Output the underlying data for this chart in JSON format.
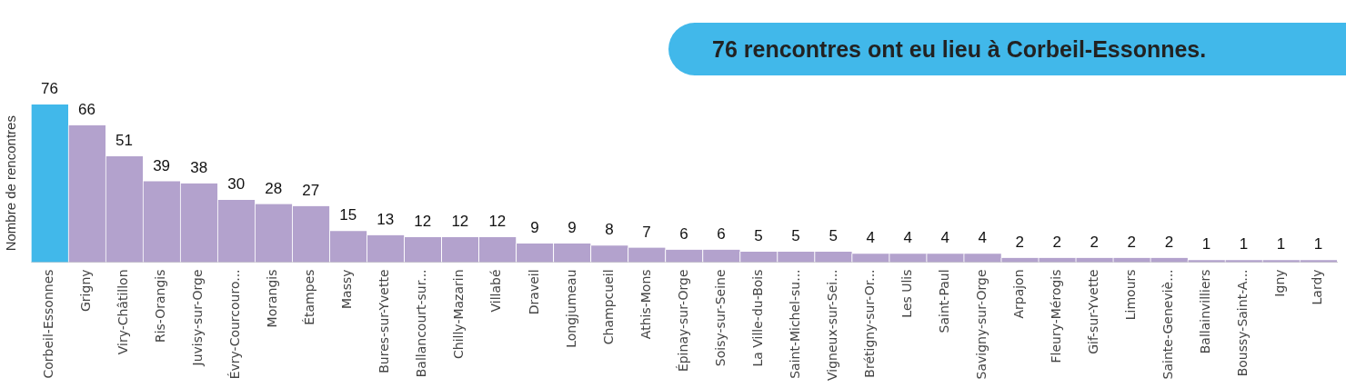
{
  "chart_data": {
    "type": "bar",
    "ylabel": "Nombre de rencontres",
    "annotations": [
      "76 rencontres ont eu lieu à Corbeil-Essonnes."
    ],
    "categories": [
      "Corbeil-Essonnes",
      "Grigny",
      "Viry-Châtillon",
      "Ris-Orangis",
      "Juvisy-sur-Orge",
      "Évry-Courcouro...",
      "Morangis",
      "Étampes",
      "Massy",
      "Bures-sur-Yvette",
      "Ballancourt-sur...",
      "Chilly-Mazarin",
      "Villabé",
      "Draveil",
      "Longjumeau",
      "Champcueil",
      "Athis-Mons",
      "Épinay-sur-Orge",
      "Soisy-sur-Seine",
      "La Ville-du-Bois",
      "Saint-Michel-su...",
      "Vigneux-sur-Sei...",
      "Brétigny-sur-Or...",
      "Les Ulis",
      "Saint-Paul",
      "Savigny-sur-Orge",
      "Arpajon",
      "Fleury-Mérogis",
      "Gif-sur-Yvette",
      "Limours",
      "Sainte-Geneviè...",
      "Ballainvilliers",
      "Boussy-Saint-A...",
      "Igny",
      "Lardy"
    ],
    "values": [
      76,
      66,
      51,
      39,
      38,
      30,
      28,
      27,
      15,
      13,
      12,
      12,
      12,
      9,
      9,
      8,
      7,
      6,
      6,
      5,
      5,
      5,
      4,
      4,
      4,
      4,
      2,
      2,
      2,
      2,
      2,
      1,
      1,
      1,
      1
    ],
    "colors": [
      "#41b8ea",
      "#b3a2cd",
      "#b3a2cd",
      "#b3a2cd",
      "#b3a2cd",
      "#b3a2cd",
      "#b3a2cd",
      "#b3a2cd",
      "#b3a2cd",
      "#b3a2cd",
      "#b3a2cd",
      "#b3a2cd",
      "#b3a2cd",
      "#b3a2cd",
      "#b3a2cd",
      "#b3a2cd",
      "#b3a2cd",
      "#b3a2cd",
      "#b3a2cd",
      "#b3a2cd",
      "#b3a2cd",
      "#b3a2cd",
      "#b3a2cd",
      "#b3a2cd",
      "#b3a2cd",
      "#b3a2cd",
      "#b3a2cd",
      "#b3a2cd",
      "#b3a2cd",
      "#b3a2cd",
      "#b3a2cd",
      "#b3a2cd",
      "#b3a2cd",
      "#b3a2cd",
      "#b3a2cd"
    ],
    "ylim": [
      0,
      76
    ],
    "data_labels": true,
    "grid": false,
    "legend": false
  }
}
